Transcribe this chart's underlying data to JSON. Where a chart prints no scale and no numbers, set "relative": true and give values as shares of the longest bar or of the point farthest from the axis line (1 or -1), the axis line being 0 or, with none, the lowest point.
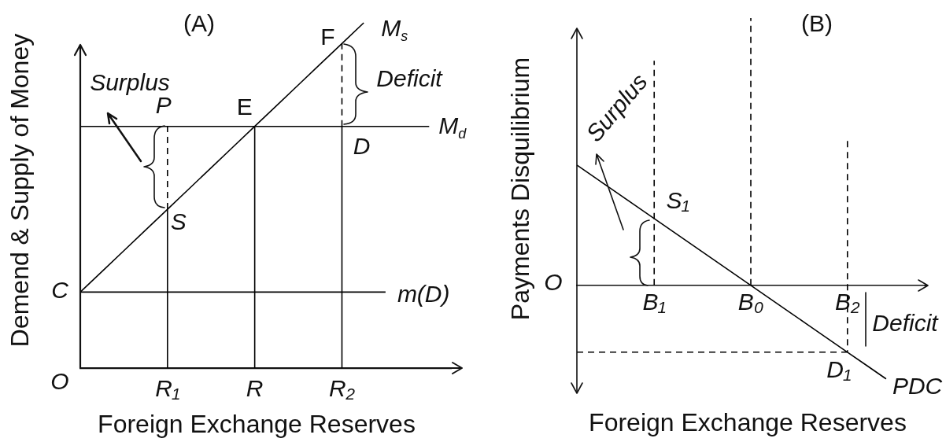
{
  "chart_data": [
    {
      "type": "line",
      "title": "(A)",
      "xlabel": "Foreign Exchange Reserves",
      "ylabel": "Demend & Supply of Money",
      "relative": true,
      "marker": "none",
      "line_style": "solid",
      "categories": [
        null,
        null,
        null,
        null,
        "R₁",
        null,
        null,
        null,
        "R",
        null,
        null,
        null,
        "R₂",
        null,
        null,
        null,
        null,
        null
      ],
      "series": [
        {
          "name": "M$_{s}$",
          "color": "#000000",
          "values": [
            0.22,
            0.28,
            0.34,
            0.4,
            0.46,
            0.52,
            0.58,
            0.64,
            0.7,
            0.76,
            0.82,
            0.88,
            0.94,
            1,
            null,
            null,
            null,
            null
          ]
        },
        {
          "name": "M$_{d}$",
          "color": "#000000",
          "values": [
            0.7,
            0.7,
            0.7,
            0.7,
            0.7,
            0.7,
            0.7,
            0.7,
            0.7,
            0.7,
            0.7,
            0.7,
            0.7,
            0.7,
            0.7,
            0.7,
            0.7,
            null
          ]
        },
        {
          "name": "m(D)",
          "color": "#000000",
          "values": [
            0.22,
            0.22,
            0.22,
            0.22,
            0.22,
            0.22,
            0.22,
            0.22,
            0.22,
            0.22,
            0.22,
            0.22,
            0.22,
            0.22,
            0.22,
            null,
            null,
            null
          ]
        },
        {
          "color": "#000000",
          "x": [
            "R₁",
            "R₁"
          ],
          "values": [
            0,
            0.46
          ]
        },
        {
          "color": "#000000",
          "x": [
            "R₁",
            "R₁"
          ],
          "values": [
            0.46,
            0.7
          ],
          "line_style": "dashed"
        },
        {
          "color": "#000000",
          "x": [
            "R",
            "R"
          ],
          "values": [
            0,
            0.7
          ]
        },
        {
          "color": "#000000",
          "x": [
            "R₂",
            "R₂"
          ],
          "values": [
            0,
            0.7
          ]
        },
        {
          "color": "#000000",
          "x": [
            "R₂",
            "R₂"
          ],
          "values": [
            0.7,
            0.94
          ],
          "line_style": "dashed"
        }
      ],
      "annotations": [
        "O",
        "C",
        {
          "text": "P",
          "x": "R₁",
          "y": 0.7
        },
        {
          "text": "S",
          "x": "R₁",
          "y": 0.46
        },
        {
          "text": "E",
          "x": "R",
          "y": 0.7
        },
        {
          "text": "F",
          "x": "R₂",
          "y": 0.94
        },
        {
          "text": "D",
          "x": "R₂",
          "y": 0.7
        },
        "Surplus",
        "Deficit"
      ]
    },
    {
      "type": "line",
      "title": "(B)",
      "xlabel": "Foreign Exchange Reserves",
      "ylabel": "Payments Disquilibrium",
      "relative": true,
      "marker": "none",
      "line_style": "solid",
      "categories": [
        null,
        null,
        null,
        null,
        "B₁",
        null,
        null,
        null,
        null,
        "B₀",
        null,
        null,
        null,
        null,
        "B₂",
        null,
        null,
        null,
        null
      ],
      "series": [
        {
          "name": "PDC",
          "color": "#000000",
          "values": [
            0.45,
            0.4,
            0.35,
            0.3,
            0.25,
            0.2,
            0.15,
            0.1,
            0.05,
            0,
            -0.05,
            -0.1,
            -0.15,
            -0.2,
            -0.25,
            -0.3,
            -0.35,
            null,
            null
          ]
        },
        {
          "color": "#000000",
          "x": [
            "B₁",
            "B₁"
          ],
          "values": [
            0,
            0.84
          ],
          "line_style": "dashed"
        },
        {
          "color": "#000000",
          "x": [
            "B₀",
            "B₀"
          ],
          "values": [
            0,
            1
          ],
          "line_style": "dashed"
        },
        {
          "color": "#000000",
          "x": [
            "B₂",
            "B₂"
          ],
          "values": [
            0.54,
            -0.25
          ],
          "line_style": "dashed"
        },
        {
          "color": "#000000",
          "values": [
            -0.25,
            -0.25,
            -0.25,
            -0.25,
            -0.25,
            -0.25,
            -0.25,
            -0.25,
            -0.25,
            -0.25,
            -0.25,
            -0.25,
            -0.25,
            -0.25,
            -0.25,
            null,
            null,
            null,
            null
          ],
          "line_style": "dashed"
        }
      ],
      "annotations": [
        "O",
        {
          "text": "S₁",
          "x": "B₁",
          "y": 0.25
        },
        {
          "text": "D₁",
          "x": "B₂",
          "y": -0.25
        },
        "Surplus",
        "Deficit"
      ]
    }
  ]
}
